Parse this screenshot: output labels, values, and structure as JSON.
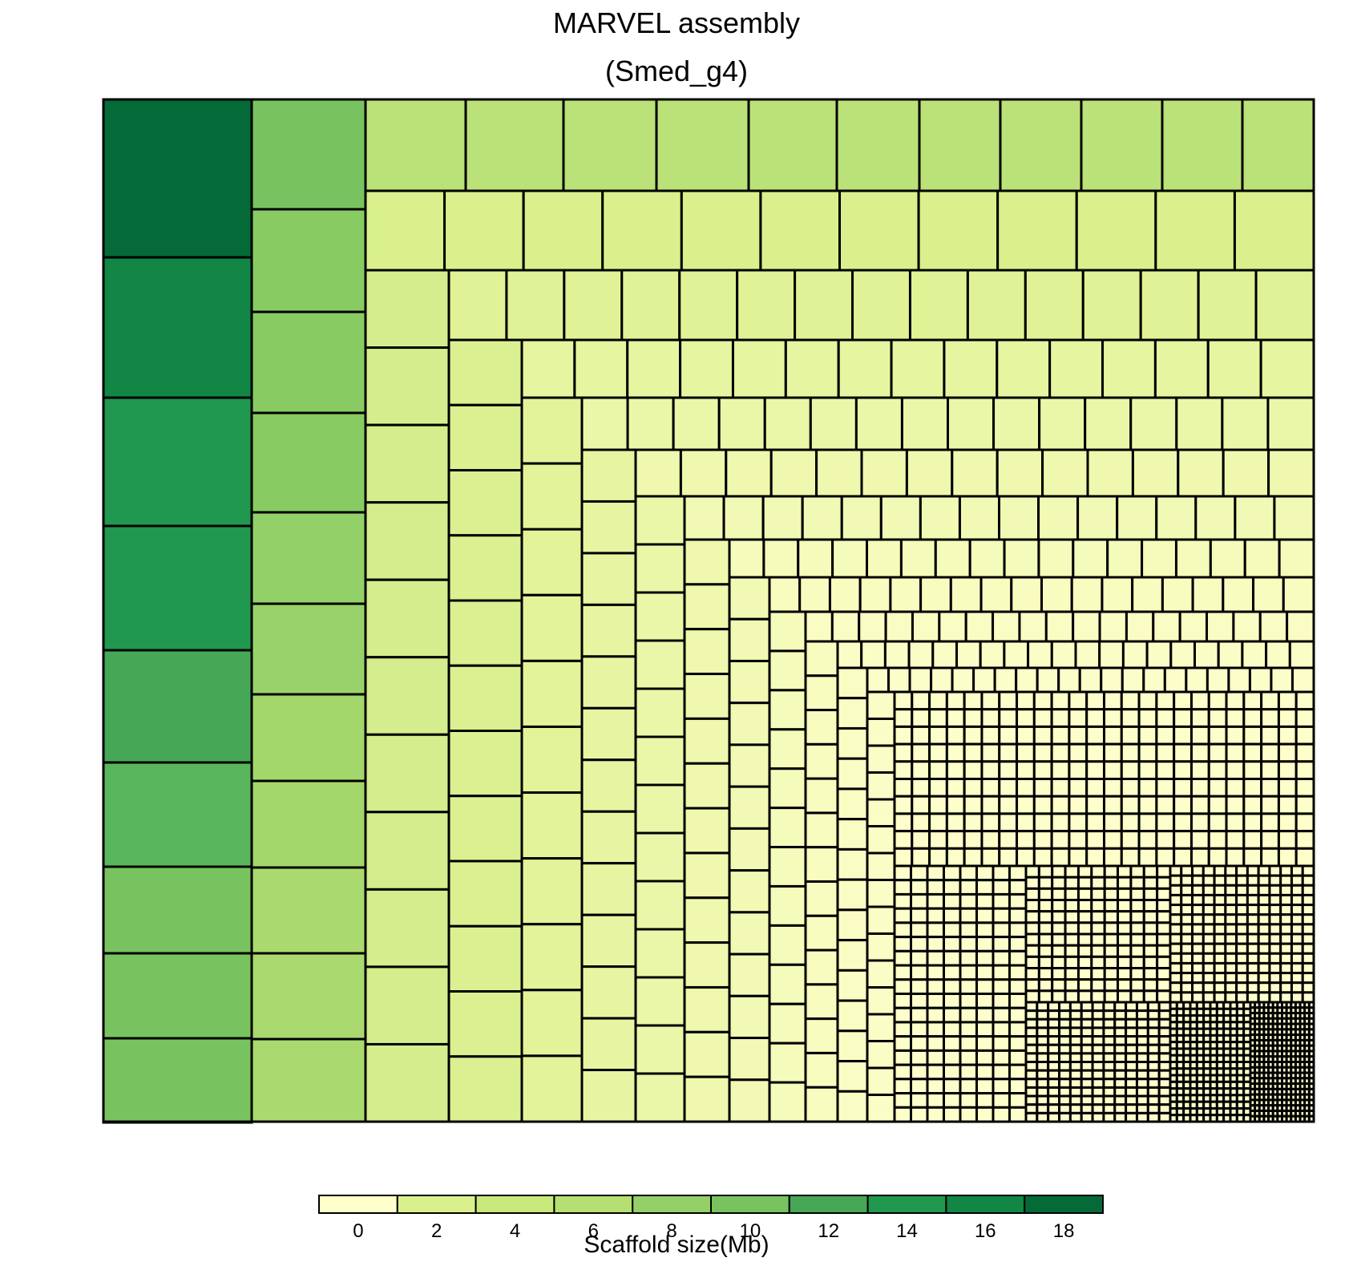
{
  "chart_data": {
    "type": "treemap",
    "title": "MARVEL assembly",
    "subtitle": "(Smed_g4)",
    "color_scale": {
      "title": "Scaffold size(Mb)",
      "bins": [
        {
          "range": [
            -1,
            1
          ],
          "color": "#ffffcc"
        },
        {
          "range": [
            1,
            3
          ],
          "color": "#d9f08d"
        },
        {
          "range": [
            3,
            5
          ],
          "color": "#c9e87b"
        },
        {
          "range": [
            5,
            7
          ],
          "color": "#b5df72"
        },
        {
          "range": [
            7,
            9
          ],
          "color": "#94d068"
        },
        {
          "range": [
            9,
            11
          ],
          "color": "#78c35f"
        },
        {
          "range": [
            11,
            13
          ],
          "color": "#46a857"
        },
        {
          "range": [
            13,
            15
          ],
          "color": "#21984f"
        },
        {
          "range": [
            15,
            17
          ],
          "color": "#118645"
        },
        {
          "range": [
            17,
            19
          ],
          "color": "#036a38"
        }
      ],
      "tick_labels": [
        "0",
        "2",
        "4",
        "6",
        "8",
        "10",
        "12",
        "14",
        "16",
        "18"
      ]
    },
    "columns": [
      {
        "sizes_mb": [
          18.6,
          16.5,
          14.9,
          14.5,
          13.0,
          12.0,
          10.2,
          9.9,
          9.9
        ],
        "colors": [
          "#036a38",
          "#118645",
          "#21984f",
          "#21984f",
          "#46a857",
          "#5ab65c",
          "#78c35f",
          "#78c35f",
          "#78c35f"
        ]
      },
      {
        "sizes_mb": [
          9.5,
          9.0,
          8.6,
          8.6,
          8.0,
          7.9,
          7.6,
          7.6,
          7.5,
          7.5,
          7.5
        ],
        "colors": [
          "#78c35f",
          "#88cb63",
          "#88cb63",
          "#88cb63",
          "#94d068",
          "#99d26a",
          "#a3d76c",
          "#a3d76c",
          "#a9d96f",
          "#a9d96f",
          "#a9d96f"
        ]
      }
    ],
    "region_sizes_mb": [
      {
        "rows": 1,
        "sizes_mb": [
          6.4,
          6.2,
          6.0,
          5.9,
          5.8,
          5.6,
          5.5,
          5.4,
          5.3,
          5.3,
          5.0,
          4.8,
          4.7
        ],
        "color": "#bae278"
      },
      {
        "rows": 12,
        "sizes_mb": [
          3.8,
          3.6,
          3.4,
          3.2,
          3.0,
          2.8,
          2.6,
          2.4,
          2.2,
          2.1,
          2.0,
          1.8
        ],
        "color": "#d9f08d"
      }
    ],
    "small_scaffolds_mb_range": [
      0.01,
      1.0
    ],
    "small_scaffold_color": "#ffffcc"
  }
}
